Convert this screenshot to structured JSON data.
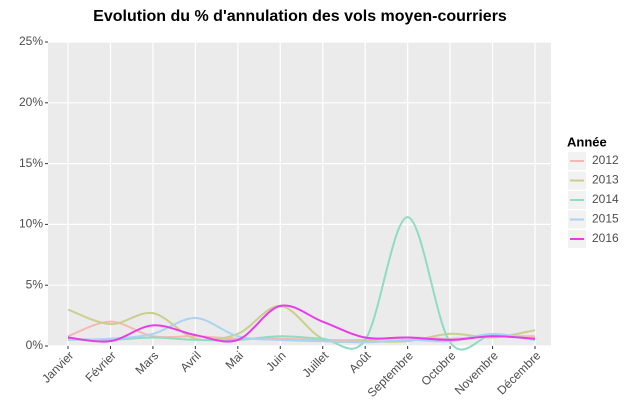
{
  "chart_data": {
    "type": "line",
    "title": "Evolution du % d'annulation des vols moyen-courriers",
    "categories": [
      "Janvier",
      "Février",
      "Mars",
      "Avril",
      "Mai",
      "Juin",
      "Juillet",
      "Août",
      "Septembre",
      "Octobre",
      "Novembre",
      "Décembre"
    ],
    "legend_title": "Année",
    "series": [
      {
        "name": "2012",
        "color": "#f5b8b4",
        "values": [
          0.8,
          2.0,
          0.8,
          0.8,
          0.6,
          0.6,
          0.5,
          0.5,
          0.7,
          0.6,
          0.8,
          0.8
        ]
      },
      {
        "name": "2013",
        "color": "#c9cf8c",
        "values": [
          3.0,
          1.8,
          2.7,
          0.6,
          1.0,
          3.3,
          0.6,
          0.4,
          0.4,
          1.0,
          0.7,
          1.3
        ]
      },
      {
        "name": "2014",
        "color": "#8edcc1",
        "values": [
          0.6,
          0.5,
          0.7,
          0.5,
          0.5,
          0.8,
          0.6,
          0.5,
          10.6,
          0.3,
          0.9,
          0.5
        ]
      },
      {
        "name": "2015",
        "color": "#a9d3f2",
        "values": [
          0.5,
          0.6,
          1.0,
          2.3,
          0.8,
          0.5,
          0.4,
          0.3,
          0.5,
          0.4,
          1.0,
          0.5
        ]
      },
      {
        "name": "2016",
        "color": "#e63de6",
        "values": [
          0.7,
          0.4,
          1.7,
          0.9,
          0.5,
          3.3,
          2.0,
          0.7,
          0.7,
          0.5,
          0.8,
          0.6
        ]
      }
    ],
    "ylim": [
      0,
      25
    ],
    "yticks": [
      {
        "value": 0,
        "label": "0%"
      },
      {
        "value": 5,
        "label": "5%"
      },
      {
        "value": 10,
        "label": "10%"
      },
      {
        "value": 15,
        "label": "15%"
      },
      {
        "value": 20,
        "label": "20%"
      },
      {
        "value": 25,
        "label": "25%"
      }
    ],
    "grid": true,
    "legend": "right"
  }
}
